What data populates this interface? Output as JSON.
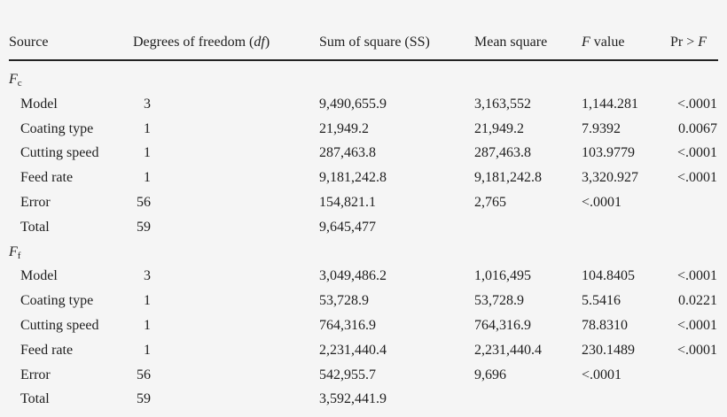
{
  "table": {
    "headers": [
      {
        "pre": "Source",
        "ital": "",
        "post": ""
      },
      {
        "pre": "Degrees of freedom (",
        "ital": "df",
        "post": ")"
      },
      {
        "pre": "Sum of square (SS)",
        "ital": "",
        "post": ""
      },
      {
        "pre": "Mean square",
        "ital": "",
        "post": ""
      },
      {
        "pre": "",
        "ital": "F",
        "post": " value"
      },
      {
        "pre": "Pr > ",
        "ital": "F",
        "post": ""
      }
    ],
    "groups": [
      {
        "label": "F",
        "sub": "c",
        "rows": [
          {
            "source": "Model",
            "df": "3",
            "ss": "9,490,655.9",
            "ms": "3,163,552",
            "f": "1,144.281",
            "p": "<.0001"
          },
          {
            "source": "Coating type",
            "df": "1",
            "ss": "21,949.2",
            "ms": "21,949.2",
            "f": "7.9392",
            "p": "0.0067"
          },
          {
            "source": "Cutting speed",
            "df": "1",
            "ss": "287,463.8",
            "ms": "287,463.8",
            "f": "103.9779",
            "p": "<.0001"
          },
          {
            "source": "Feed rate",
            "df": "1",
            "ss": "9,181,242.8",
            "ms": "9,181,242.8",
            "f": "3,320.927",
            "p": "<.0001"
          },
          {
            "source": "Error",
            "df": "56",
            "ss": "154,821.1",
            "ms": "2,765",
            "f": "<.0001",
            "p": ""
          },
          {
            "source": "Total",
            "df": "59",
            "ss": "9,645,477",
            "ms": "",
            "f": "",
            "p": ""
          }
        ]
      },
      {
        "label": "F",
        "sub": "f",
        "rows": [
          {
            "source": "Model",
            "df": "3",
            "ss": "3,049,486.2",
            "ms": "1,016,495",
            "f": "104.8405",
            "p": "<.0001"
          },
          {
            "source": "Coating type",
            "df": "1",
            "ss": "53,728.9",
            "ms": "53,728.9",
            "f": "5.5416",
            "p": "0.0221"
          },
          {
            "source": "Cutting speed",
            "df": "1",
            "ss": "764,316.9",
            "ms": "764,316.9",
            "f": "78.8310",
            "p": "<.0001"
          },
          {
            "source": "Feed rate",
            "df": "1",
            "ss": "2,231,440.4",
            "ms": "2,231,440.4",
            "f": "230.1489",
            "p": "<.0001"
          },
          {
            "source": "Error",
            "df": "56",
            "ss": "542,955.7",
            "ms": "9,696",
            "f": "<.0001",
            "p": ""
          },
          {
            "source": "Total",
            "df": "59",
            "ss": "3,592,441.9",
            "ms": "",
            "f": "",
            "p": ""
          }
        ]
      }
    ]
  }
}
